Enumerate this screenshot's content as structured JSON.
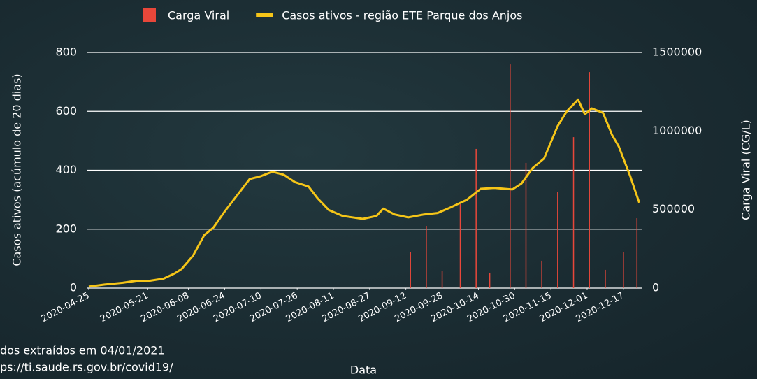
{
  "chart_data": {
    "type": "bar-line",
    "xlabel": "Data",
    "ylabel": "Casos ativos (acúmulo de 20 dias)",
    "y2label": "Carga Viral (CG/L)",
    "annotations": [
      "dos extraídos em 04/01/2021",
      "ps://ti.saude.rs.gov.br/covid19/"
    ],
    "xlim": [
      "2020-04-25",
      "2020-12-26"
    ],
    "xticks": [
      "2020-04-25",
      "2020-05-21",
      "2020-06-08",
      "2020-06-24",
      "2020-07-10",
      "2020-07-26",
      "2020-08-11",
      "2020-08-27",
      "2020-09-12",
      "2020-09-28",
      "2020-10-14",
      "2020-10-30",
      "2020-11-15",
      "2020-12-01",
      "2020-12-17"
    ],
    "ylim": [
      0,
      800
    ],
    "yticks": [
      0,
      200,
      400,
      600,
      800
    ],
    "y2lim": [
      0,
      1500000
    ],
    "y2ticks": [
      0,
      500000,
      1000000,
      1500000
    ],
    "grid": true,
    "legend": "top",
    "series": [
      {
        "name": "Carga Viral",
        "type": "bar",
        "axis": "y2",
        "color": "#e8473a",
        "x": [
          "2020-09-14",
          "2020-09-21",
          "2020-09-28",
          "2020-10-06",
          "2020-10-13",
          "2020-10-19",
          "2020-10-28",
          "2020-11-04",
          "2020-11-11",
          "2020-11-18",
          "2020-11-25",
          "2020-12-02",
          "2020-12-09",
          "2020-12-17",
          "2020-12-23"
        ],
        "values": [
          231000,
          396000,
          107000,
          534000,
          886000,
          98000,
          1424000,
          797000,
          174000,
          610000,
          961000,
          1375000,
          116000,
          227000,
          445000
        ]
      },
      {
        "name": "Casos ativos - região ETE Parque dos Anjos",
        "type": "line",
        "color": "#f5c518",
        "x": [
          "2020-04-25",
          "2020-05-02",
          "2020-05-10",
          "2020-05-16",
          "2020-05-22",
          "2020-05-28",
          "2020-06-02",
          "2020-06-05",
          "2020-06-10",
          "2020-06-15",
          "2020-06-19",
          "2020-06-24",
          "2020-06-30",
          "2020-07-05",
          "2020-07-10",
          "2020-07-15",
          "2020-07-20",
          "2020-07-25",
          "2020-07-31",
          "2020-08-04",
          "2020-08-09",
          "2020-08-15",
          "2020-08-24",
          "2020-08-30",
          "2020-09-02",
          "2020-09-07",
          "2020-09-13",
          "2020-09-20",
          "2020-09-26",
          "2020-10-02",
          "2020-10-09",
          "2020-10-15",
          "2020-10-21",
          "2020-10-29",
          "2020-11-02",
          "2020-11-07",
          "2020-11-12",
          "2020-11-18",
          "2020-11-22",
          "2020-11-27",
          "2020-11-30",
          "2020-12-03",
          "2020-12-08",
          "2020-12-12",
          "2020-12-15",
          "2020-12-20",
          "2020-12-24"
        ],
        "values": [
          5,
          12,
          18,
          25,
          25,
          32,
          50,
          65,
          110,
          180,
          205,
          260,
          320,
          370,
          380,
          395,
          385,
          360,
          345,
          305,
          265,
          245,
          235,
          245,
          270,
          250,
          240,
          250,
          255,
          275,
          300,
          337,
          340,
          335,
          355,
          408,
          440,
          550,
          600,
          640,
          590,
          610,
          595,
          520,
          480,
          380,
          290
        ]
      }
    ]
  }
}
